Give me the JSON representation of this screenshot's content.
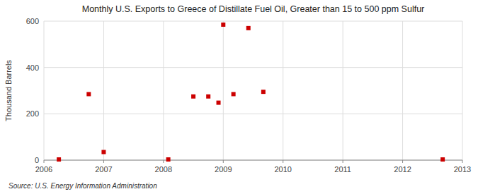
{
  "chart_data": {
    "type": "scatter",
    "title": "Monthly U.S. Exports to Greece of Distillate Fuel Oil, Greater than 15 to 500 ppm Sulfur",
    "y_label": "Thousand Barrels",
    "annotations": [
      "Source: U.S. Energy Information Administration"
    ],
    "x": [
      2006.25,
      2006.75,
      2007.0,
      2008.08,
      2008.5,
      2008.75,
      2008.92,
      2009.0,
      2009.17,
      2009.42,
      2009.67,
      2012.67
    ],
    "values": [
      3,
      285,
      35,
      3,
      275,
      275,
      248,
      585,
      285,
      570,
      295,
      3
    ],
    "color": "#cc0000",
    "marker": "square",
    "xlim": [
      2006,
      2013
    ],
    "xticks": [
      2006,
      2007,
      2008,
      2009,
      2010,
      2011,
      2012,
      2013
    ],
    "ylim": [
      0,
      600
    ],
    "yticks": [
      0,
      200,
      400,
      600
    ],
    "grid": true
  }
}
